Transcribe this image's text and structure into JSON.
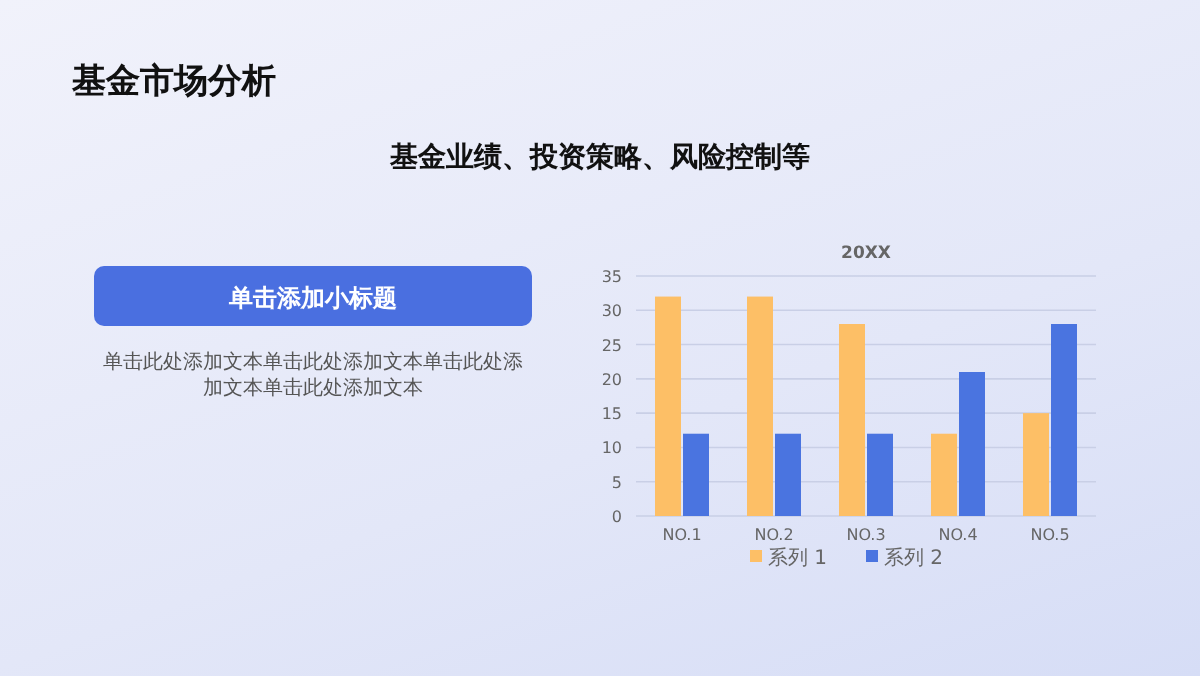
{
  "chart_data": {
    "type": "bar",
    "title": "20XX",
    "annotations": [
      "基金市场分析",
      "基金业绩、投资策略、风险控制等",
      "单击添加小标题",
      "单击此处添加文本单击此处添加文本单击此处添加文本单击此处添加文本"
    ],
    "categories": [
      "NO.1",
      "NO.2",
      "NO.3",
      "NO.4",
      "NO.5"
    ],
    "series": [
      {
        "name": "系列 1",
        "color": "#fdbf66",
        "values": [
          32,
          32,
          28,
          12,
          15
        ]
      },
      {
        "name": "系列 2",
        "color": "#4a74e0",
        "values": [
          12,
          12,
          12,
          21,
          28
        ]
      }
    ],
    "ylim": [
      0,
      35
    ],
    "yticks": [
      0,
      5,
      10,
      15,
      20,
      25,
      30,
      35
    ],
    "grid": "y",
    "legend": "bottom"
  }
}
